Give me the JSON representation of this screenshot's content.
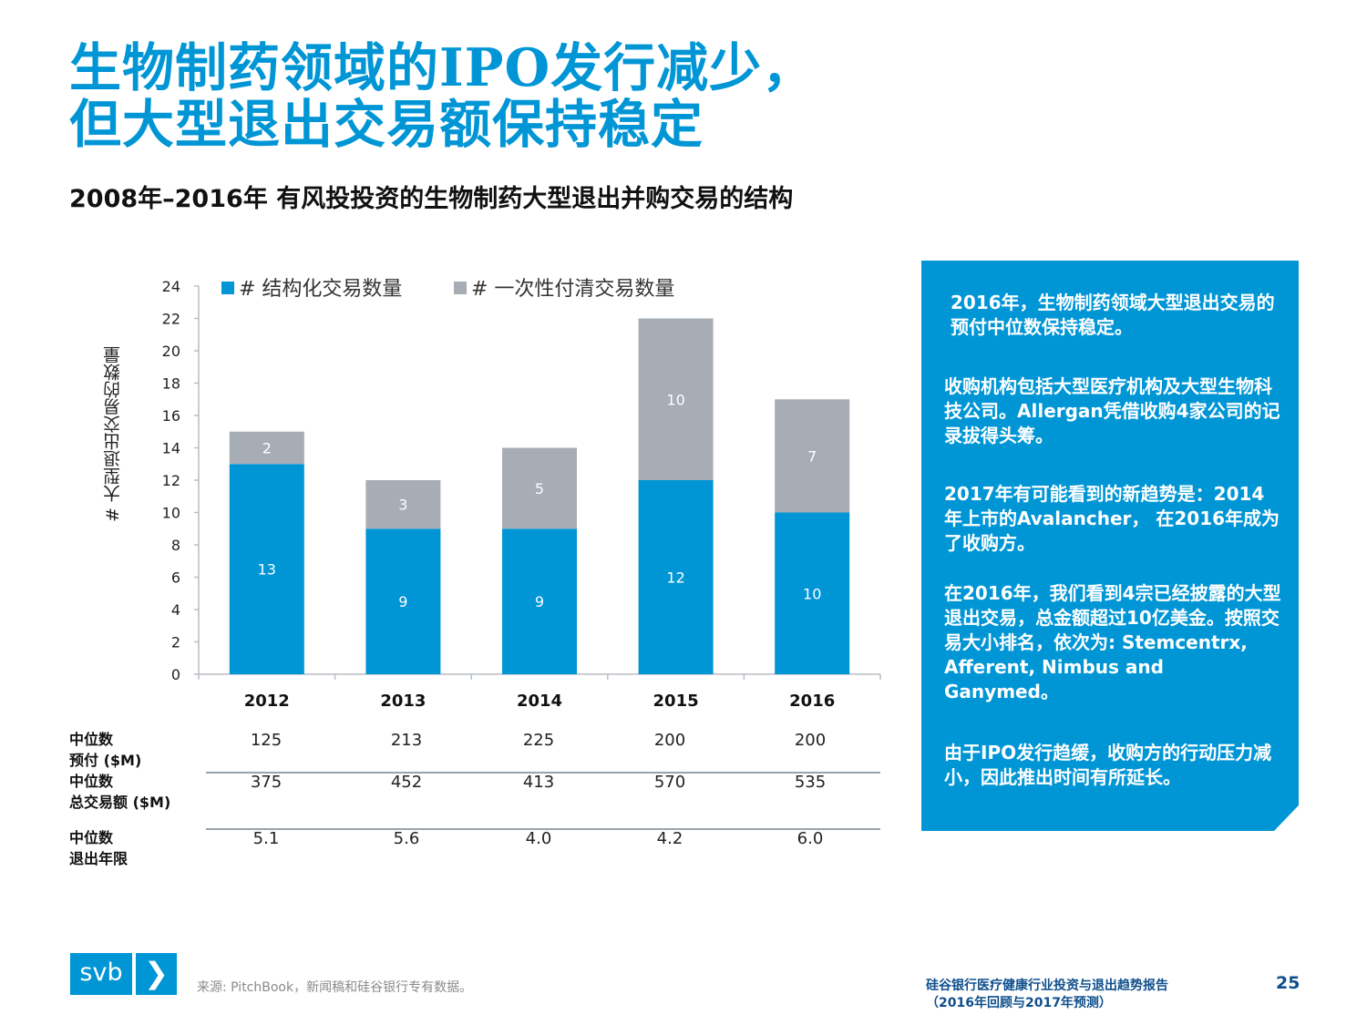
{
  "title": {
    "line1": "生物制药领域的IPO发行减少，",
    "line2": "但大型退出交易额保持稳定"
  },
  "subtitle": "2008年–2016年 有风投投资的生物制药大型退出并购交易的结构",
  "chart_data": {
    "type": "bar",
    "stacked": true,
    "categories": [
      "2012",
      "2013",
      "2014",
      "2015",
      "2016"
    ],
    "series": [
      {
        "name": "# 结构化交易数量",
        "values": [
          13,
          9,
          9,
          12,
          10
        ],
        "color": "#0096d6"
      },
      {
        "name": "# 一次性付清交易数量",
        "values": [
          2,
          3,
          5,
          10,
          7
        ],
        "color": "#a7adb4"
      }
    ],
    "ylabel": "# 大型退出交易的数量",
    "ylim": [
      0,
      24
    ],
    "yticks": [
      0,
      2,
      4,
      6,
      8,
      10,
      12,
      14,
      16,
      18,
      20,
      22,
      24
    ],
    "legend": "top"
  },
  "table": {
    "rows": [
      {
        "label1": "中位数",
        "label2": "预付 ($M)",
        "values": [
          "125",
          "213",
          "225",
          "200",
          "200"
        ]
      },
      {
        "label1": "中位数",
        "label2": "总交易额 ($M)",
        "values": [
          "375",
          "452",
          "413",
          "570",
          "535"
        ]
      },
      {
        "label1": "中位数",
        "label2": "退出年限",
        "values": [
          "5.1",
          "5.6",
          "4.0",
          "4.2",
          "6.0"
        ]
      }
    ]
  },
  "panel": {
    "p1": "2016年，生物制药领域大型退出交易的预付中位数保持稳定。",
    "p2": "收购机构包括大型医疗机构及大型生物科技公司。Allergan凭借收购4家公司的记录拔得头筹。",
    "p3": "2017年有可能看到的新趋势是：2014年上市的Avalancher， 在2016年成为了收购方。",
    "p4": "在2016年，我们看到4宗已经披露的大型退出交易，总金额超过10亿美金。按照交易大小排名，依次为: Stemcentrx, Afferent, Nimbus and Ganymed。",
    "p5": "由于IPO发行趋缓，收购方的行动压力减小，因此推出时间有所延长。"
  },
  "footer": {
    "logo_text": "svb",
    "logo_arrow": "❯",
    "source": "来源: PitchBook，新闻稿和硅谷银行专有数据。",
    "report_line1": "硅谷银行医疗健康行业投资与退出趋势报告",
    "report_line2": "（2016年回顾与2017年预测）",
    "page": "25"
  },
  "colors": {
    "accent": "#0096d6",
    "gray": "#a7adb4",
    "navy": "#0f4f8c"
  }
}
